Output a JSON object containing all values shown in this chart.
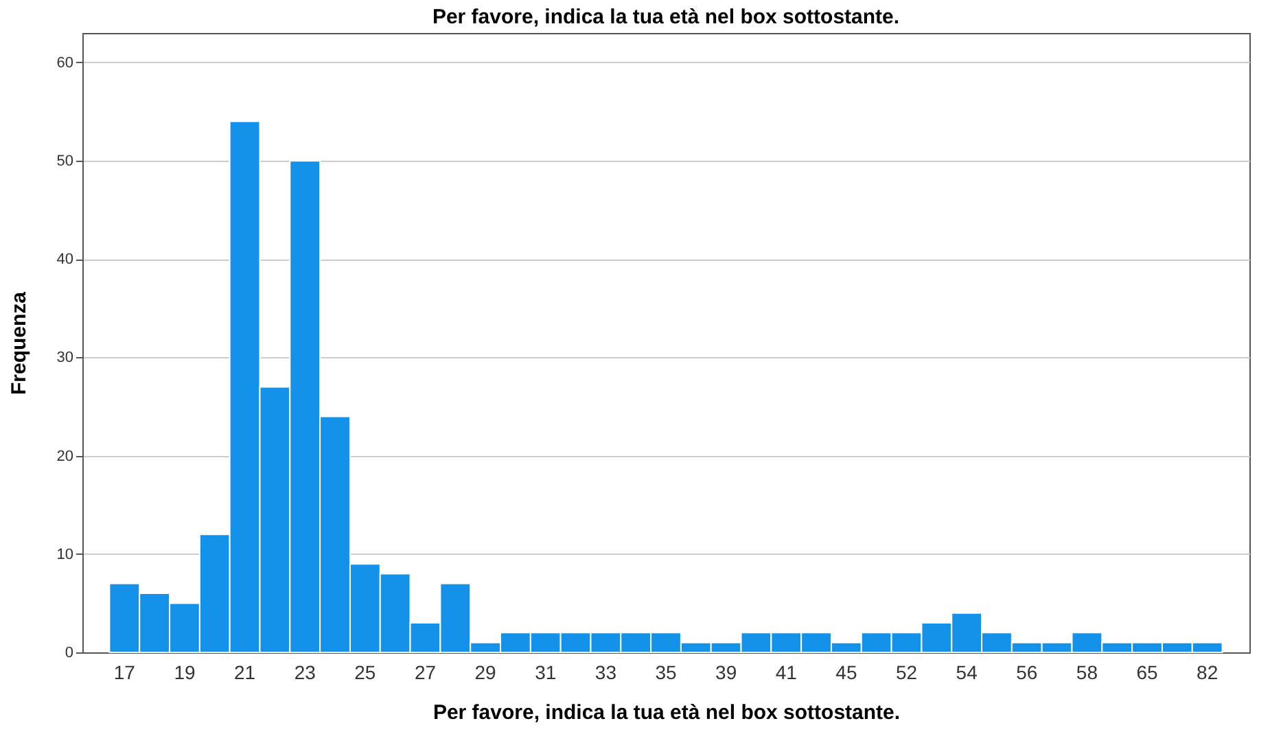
{
  "chart_data": {
    "type": "bar",
    "title": "Per favore, indica la tua età nel box sottostante.",
    "xlabel": "Per favore, indica la tua età nel box sottostante.",
    "ylabel": "Frequenza",
    "categories": [
      "17",
      null,
      "19",
      null,
      "21",
      null,
      "23",
      null,
      "25",
      null,
      "27",
      null,
      "29",
      null,
      "31",
      null,
      "33",
      null,
      "35",
      null,
      "39",
      null,
      "41",
      null,
      "45",
      null,
      "52",
      null,
      "54",
      null,
      "56",
      null,
      "58",
      null,
      "65",
      null,
      "82"
    ],
    "values": [
      7,
      6,
      5,
      12,
      54,
      27,
      50,
      24,
      9,
      8,
      3,
      7,
      1,
      2,
      2,
      2,
      2,
      2,
      2,
      1,
      1,
      2,
      2,
      2,
      1,
      2,
      2,
      3,
      4,
      2,
      1,
      1,
      2,
      1,
      1,
      1,
      1
    ],
    "color": "#1491e8",
    "ylim": [
      0,
      63
    ],
    "yticks": [
      0,
      10,
      20,
      30,
      40,
      50,
      60
    ],
    "grid": "y"
  }
}
